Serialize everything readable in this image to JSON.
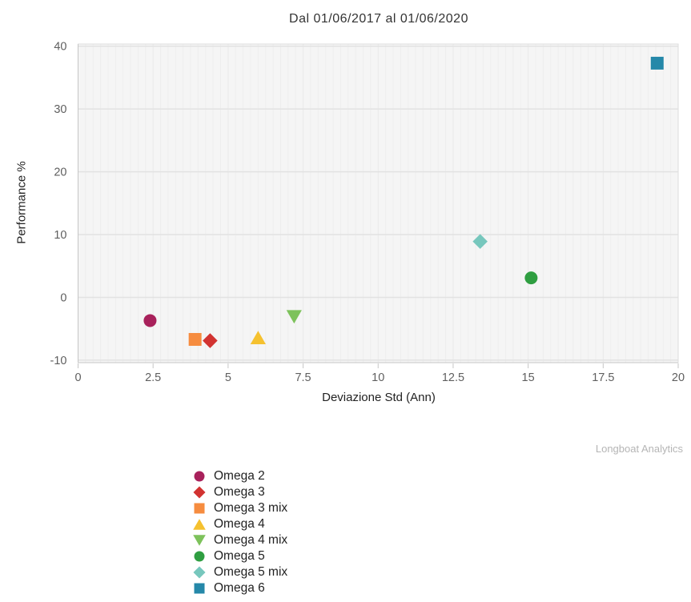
{
  "title": "Dal 01/06/2017 al 01/06/2020",
  "watermark": "Longboat Analytics",
  "colors": {
    "plot_bg": "#f5f5f5",
    "grid_major_h": "#e2e2e2",
    "grid_minor_v": "#eeeeee",
    "grid_major_v": "#e9e9e9",
    "plot_border": "#dddddd",
    "axis_line": "#c6c6c6",
    "tick_label": "#5f5f5f",
    "axis_title": "#222222",
    "title_color": "#333333",
    "watermark_color": "#b5b5b5",
    "legend_text": "#222222"
  },
  "chart_data": {
    "type": "scatter",
    "title": "Dal 01/06/2017 al 01/06/2020",
    "xlabel": "Deviazione Std (Ann)",
    "ylabel": "Performance %",
    "xlim": [
      0,
      20
    ],
    "ylim": [
      -10,
      40
    ],
    "x_ticks": [
      0,
      2.5,
      5,
      7.5,
      10,
      12.5,
      15,
      17.5,
      20
    ],
    "y_ticks": [
      -10,
      0,
      10,
      20,
      30,
      40
    ],
    "grid": true,
    "legend_position": "bottom-left",
    "series": [
      {
        "name": "Omega 2",
        "marker": "circle",
        "color": "#a8215b",
        "x": 2.4,
        "y": -3.7
      },
      {
        "name": "Omega 3",
        "marker": "diamond",
        "color": "#d23331",
        "x": 4.4,
        "y": -6.9
      },
      {
        "name": "Omega 3 mix",
        "marker": "square",
        "color": "#f68c3f",
        "x": 3.9,
        "y": -6.7
      },
      {
        "name": "Omega 4",
        "marker": "triangle-up",
        "color": "#f5c12f",
        "x": 6.0,
        "y": -6.4
      },
      {
        "name": "Omega 4 mix",
        "marker": "triangle-down",
        "color": "#7dc25b",
        "x": 7.2,
        "y": -3.1
      },
      {
        "name": "Omega 5",
        "marker": "circle",
        "color": "#2f9e41",
        "x": 15.1,
        "y": 3.1
      },
      {
        "name": "Omega 5 mix",
        "marker": "diamond",
        "color": "#77c7bd",
        "x": 13.4,
        "y": 8.9
      },
      {
        "name": "Omega 6",
        "marker": "square",
        "color": "#2588a9",
        "x": 19.3,
        "y": 37.3
      }
    ]
  }
}
